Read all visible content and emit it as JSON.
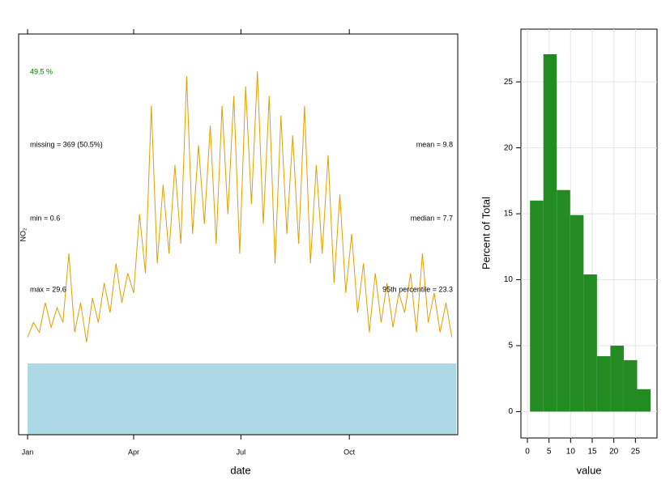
{
  "chart_data": [
    {
      "type": "line",
      "xlabel": "date",
      "ylabel": "NO₂",
      "color": "#e0a000",
      "x": [
        1,
        6,
        11,
        16,
        21,
        26,
        31,
        36,
        41,
        46,
        51,
        56,
        61,
        66,
        71,
        76,
        81,
        86,
        91,
        96,
        101,
        106,
        111,
        116,
        121,
        126,
        131,
        136,
        141,
        146,
        151,
        156,
        161,
        166,
        171,
        176,
        181,
        186,
        191,
        196,
        201,
        206,
        211,
        216,
        221,
        226,
        231,
        236,
        241,
        246,
        251,
        256,
        261,
        266,
        271,
        276,
        281,
        286,
        291,
        296,
        301,
        306,
        311,
        316,
        321,
        326,
        331,
        336,
        341,
        346,
        351,
        356,
        361
      ],
      "values": [
        2.5,
        4,
        3,
        6,
        3.5,
        5.5,
        4,
        11,
        3,
        6,
        2,
        6.5,
        4,
        8,
        5,
        10,
        6,
        9,
        7,
        15,
        9,
        26,
        10,
        18,
        11,
        20,
        12,
        29,
        13,
        22,
        14,
        24,
        12,
        26,
        15,
        27,
        11,
        28,
        16,
        29.5,
        14,
        27,
        10,
        25,
        13,
        23,
        12,
        26,
        10,
        20,
        11,
        21,
        8,
        17,
        7,
        13,
        5,
        10,
        3,
        9,
        4,
        8,
        3.5,
        7,
        5,
        9,
        3,
        11,
        4,
        7,
        3,
        6,
        2.5
      ],
      "xlim": [
        -6.6,
        366
      ],
      "ylim": [
        -7.4,
        33.3
      ],
      "xticks": [
        {
          "value": 1,
          "label": "Jan"
        },
        {
          "value": 91,
          "label": "Apr"
        },
        {
          "value": 182,
          "label": "Jul"
        },
        {
          "value": 274,
          "label": "Oct"
        }
      ],
      "annotations": [
        "49.5 %",
        "missing = 369 (50.5%)",
        "min = 0.6",
        "max = 29.6",
        "mean = 9.8",
        "median = 7.7",
        "95th percentile = 23.3"
      ]
    },
    {
      "type": "histogram",
      "xlabel": "value",
      "ylabel": "Percent of Total",
      "color": "#228b22",
      "grid": true,
      "bins": [
        0.6,
        3.7,
        6.8,
        9.9,
        13.0,
        16.1,
        19.2,
        22.3,
        25.4,
        28.5
      ],
      "values": [
        16.0,
        27.1,
        16.8,
        14.9,
        10.4,
        4.2,
        5.0,
        3.9,
        1.7
      ],
      "xlim": [
        -1.5,
        30
      ],
      "ylim": [
        -2,
        29
      ],
      "xticks": [
        0,
        5,
        10,
        15,
        20,
        25
      ],
      "yticks": [
        0,
        5,
        10,
        15,
        20,
        25
      ]
    }
  ]
}
